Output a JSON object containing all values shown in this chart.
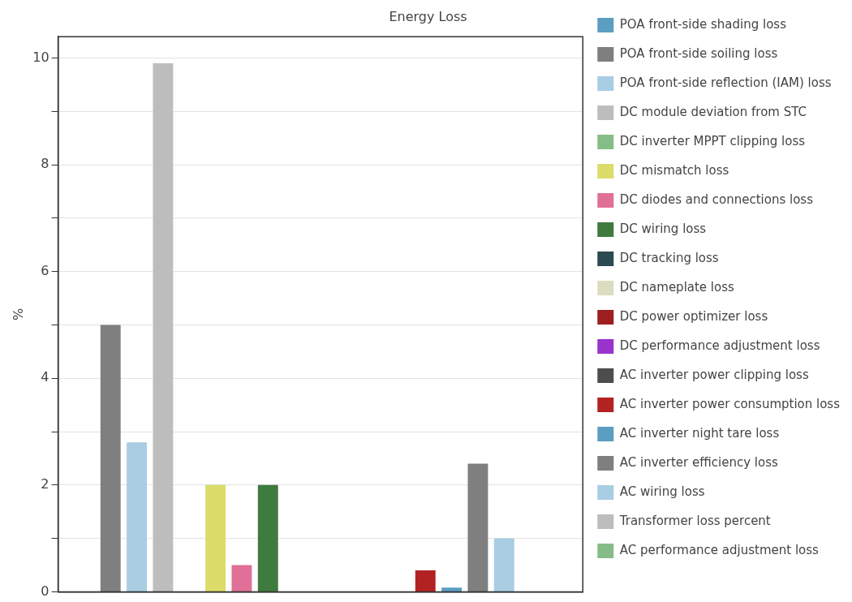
{
  "chart_data": {
    "type": "bar",
    "title": "Energy Loss",
    "ylabel": "%",
    "categories": [
      null
    ],
    "series": [
      {
        "name": "POA front-side shading loss",
        "color": "#5b9ec2",
        "values": [
          0
        ]
      },
      {
        "name": "POA front-side soiling loss",
        "color": "#7f7f7f",
        "values": [
          5.0
        ]
      },
      {
        "name": "POA front-side reflection (IAM) loss",
        "color": "#a9cde3",
        "values": [
          2.8
        ]
      },
      {
        "name": "DC module deviation from STC",
        "color": "#bdbdbd",
        "values": [
          9.9
        ]
      },
      {
        "name": "DC inverter MPPT clipping loss",
        "color": "#86bd86",
        "values": [
          0
        ]
      },
      {
        "name": "DC mismatch loss",
        "color": "#dcdc6a",
        "values": [
          2.0
        ]
      },
      {
        "name": "DC diodes and connections loss",
        "color": "#e07098",
        "values": [
          0.5
        ]
      },
      {
        "name": "DC wiring loss",
        "color": "#3f7a3f",
        "values": [
          2.0
        ]
      },
      {
        "name": "DC tracking loss",
        "color": "#2a4a4f",
        "values": [
          0
        ]
      },
      {
        "name": "DC nameplate loss",
        "color": "#dcdcc0",
        "values": [
          0
        ]
      },
      {
        "name": "DC power optimizer loss",
        "color": "#9e1f1f",
        "values": [
          0
        ]
      },
      {
        "name": "DC performance adjustment loss",
        "color": "#9933cc",
        "values": [
          0
        ]
      },
      {
        "name": "AC inverter power clipping loss",
        "color": "#4d4d4d",
        "values": [
          0
        ]
      },
      {
        "name": "AC inverter power consumption loss",
        "color": "#b22222",
        "values": [
          0.4
        ]
      },
      {
        "name": "AC inverter night tare loss",
        "color": "#5b9ec2",
        "values": [
          0.08
        ]
      },
      {
        "name": "AC inverter efficiency loss",
        "color": "#7f7f7f",
        "values": [
          2.4
        ]
      },
      {
        "name": "AC wiring loss",
        "color": "#a9cde3",
        "values": [
          1.0
        ]
      },
      {
        "name": "Transformer loss percent",
        "color": "#bdbdbd",
        "values": [
          0
        ]
      },
      {
        "name": "AC performance adjustment loss",
        "color": "#86bd86",
        "values": [
          0
        ]
      }
    ],
    "ylim": [
      0,
      10.4
    ],
    "yticks": [
      0,
      {
        "value": 1,
        "label": null
      },
      2,
      {
        "value": 3,
        "label": null
      },
      4,
      {
        "value": 5,
        "label": null
      },
      6,
      {
        "value": 7,
        "label": null
      },
      8,
      {
        "value": 9,
        "label": null
      },
      10
    ],
    "grid": "y",
    "legend": "right"
  }
}
